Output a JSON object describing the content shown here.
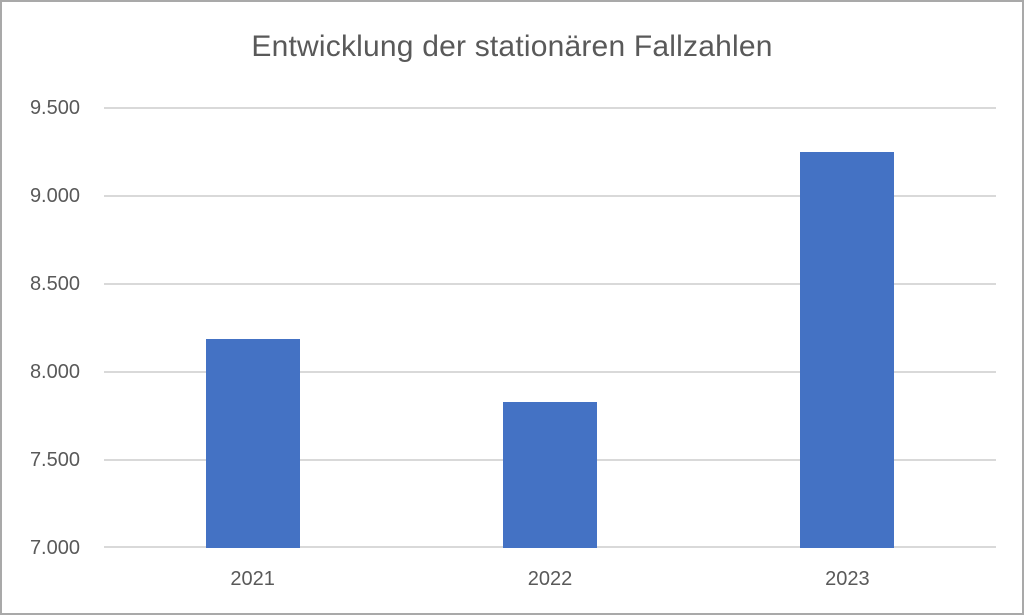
{
  "chart_data": {
    "type": "bar",
    "title": "Entwicklung der stationären Fallzahlen",
    "categories": [
      "2021",
      "2022",
      "2023"
    ],
    "values": [
      8190,
      7830,
      9250
    ],
    "xlabel": "",
    "ylabel": "",
    "ylim": [
      7000,
      9500
    ],
    "ytick_step": 500,
    "ytick_labels": [
      "7.000",
      "7.500",
      "8.000",
      "8.500",
      "9.000",
      "9.500"
    ],
    "grid": true,
    "legend": false,
    "bar_color": "#4472c4",
    "gridline_color": "#d9d9d9",
    "text_color": "#595959",
    "frame_color": "#a9a9a9",
    "background_color": "#ffffff"
  }
}
